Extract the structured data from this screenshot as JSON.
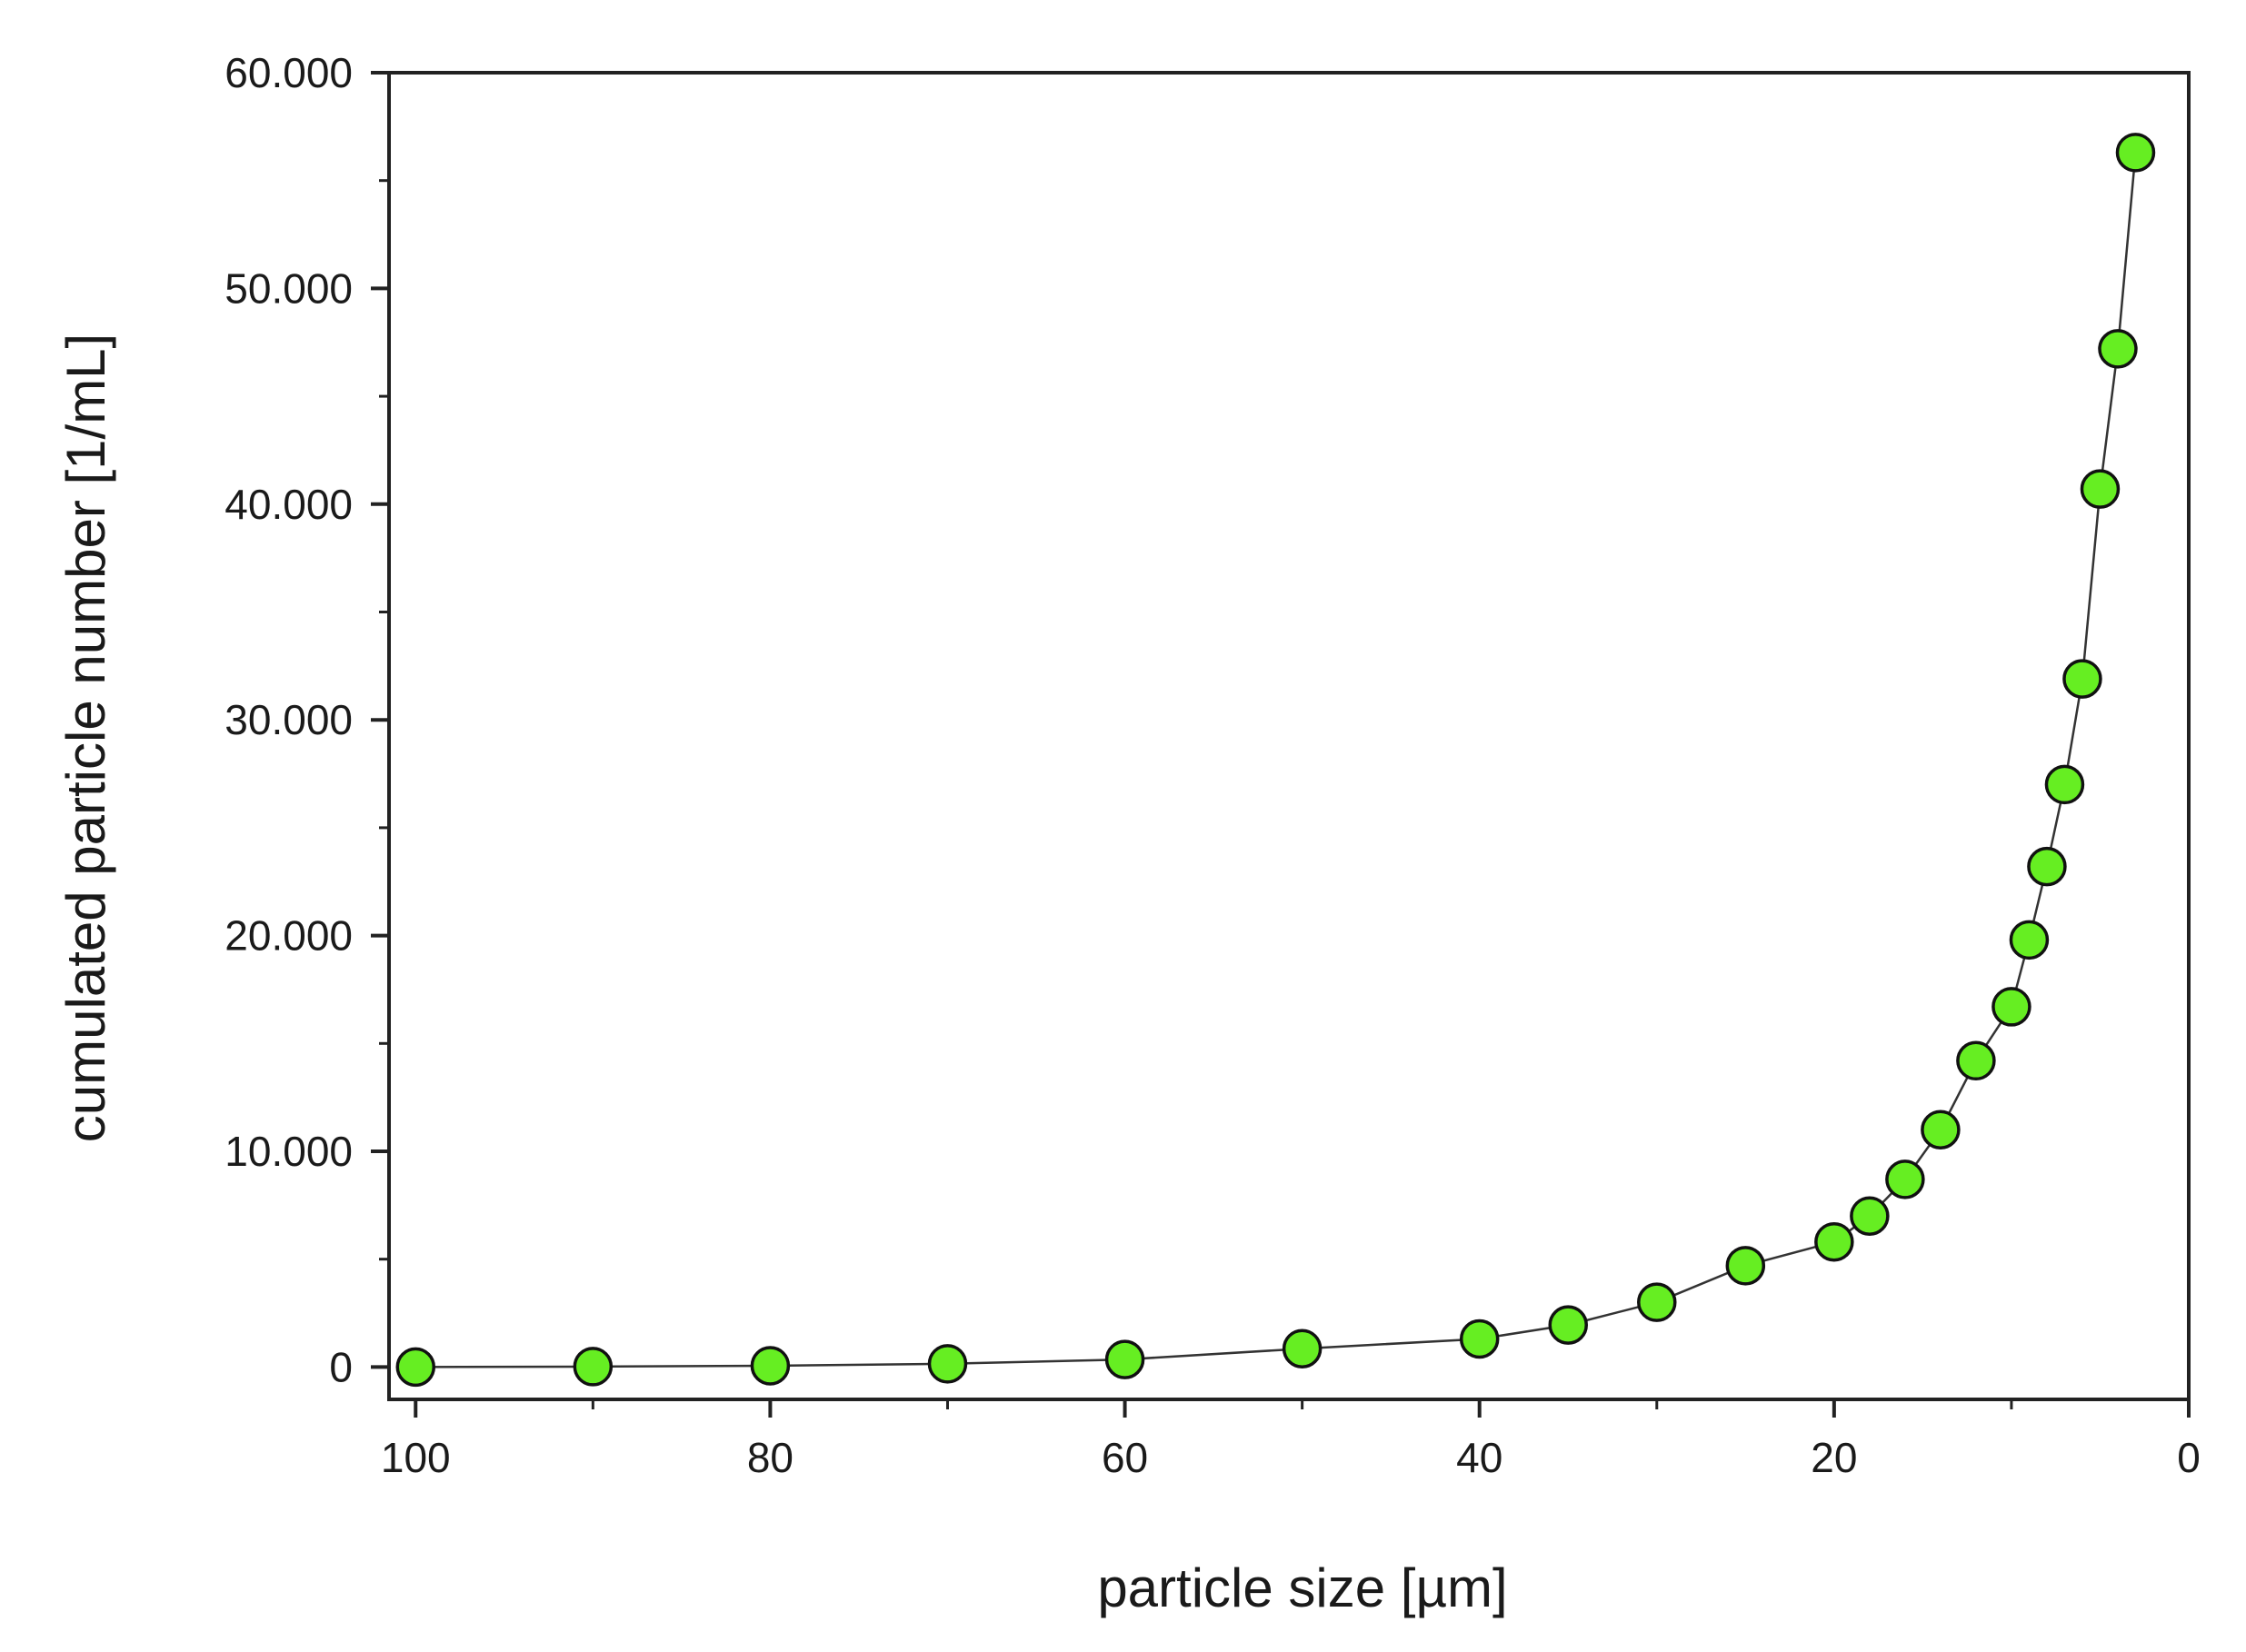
{
  "chart_data": {
    "type": "line",
    "xlabel": "particle size [µm]",
    "ylabel": "cumulated particle number [1/mL]",
    "xlim": [
      101.5,
      0
    ],
    "ylim": [
      -1500,
      60000
    ],
    "x_ticks": [
      {
        "value": 100,
        "label": "100"
      },
      {
        "value": 80,
        "label": "80"
      },
      {
        "value": 60,
        "label": "60"
      },
      {
        "value": 40,
        "label": "40"
      },
      {
        "value": 20,
        "label": "20"
      },
      {
        "value": 0,
        "label": "0"
      }
    ],
    "y_ticks": [
      {
        "value": 0,
        "label": "0"
      },
      {
        "value": 10000,
        "label": "10.000"
      },
      {
        "value": 20000,
        "label": "20.000"
      },
      {
        "value": 30000,
        "label": "30.000"
      },
      {
        "value": 40000,
        "label": "40.000"
      },
      {
        "value": 50000,
        "label": "50.000"
      },
      {
        "value": 60000,
        "label": "60.000"
      }
    ],
    "x_minor_ticks": [
      90,
      70,
      50,
      30,
      10
    ],
    "y_minor_ticks": [
      5000,
      15000,
      25000,
      35000,
      45000,
      55000
    ],
    "grid": false,
    "marker_color": "#66ee22",
    "line_color": "#333333",
    "series": [
      {
        "points": [
          [
            100,
            0
          ],
          [
            90,
            20
          ],
          [
            80,
            60
          ],
          [
            70,
            150
          ],
          [
            60,
            350
          ],
          [
            50,
            850
          ],
          [
            40,
            1300
          ],
          [
            35,
            1950
          ],
          [
            30,
            3000
          ],
          [
            25,
            4700
          ],
          [
            20,
            5800
          ],
          [
            18,
            7000
          ],
          [
            16,
            8700
          ],
          [
            14,
            11000
          ],
          [
            12,
            14200
          ],
          [
            10,
            16700
          ],
          [
            9,
            19800
          ],
          [
            8,
            23200
          ],
          [
            7,
            27000
          ],
          [
            6,
            31900
          ],
          [
            5,
            40700
          ],
          [
            4,
            47200
          ],
          [
            3,
            56300
          ]
        ]
      }
    ]
  }
}
